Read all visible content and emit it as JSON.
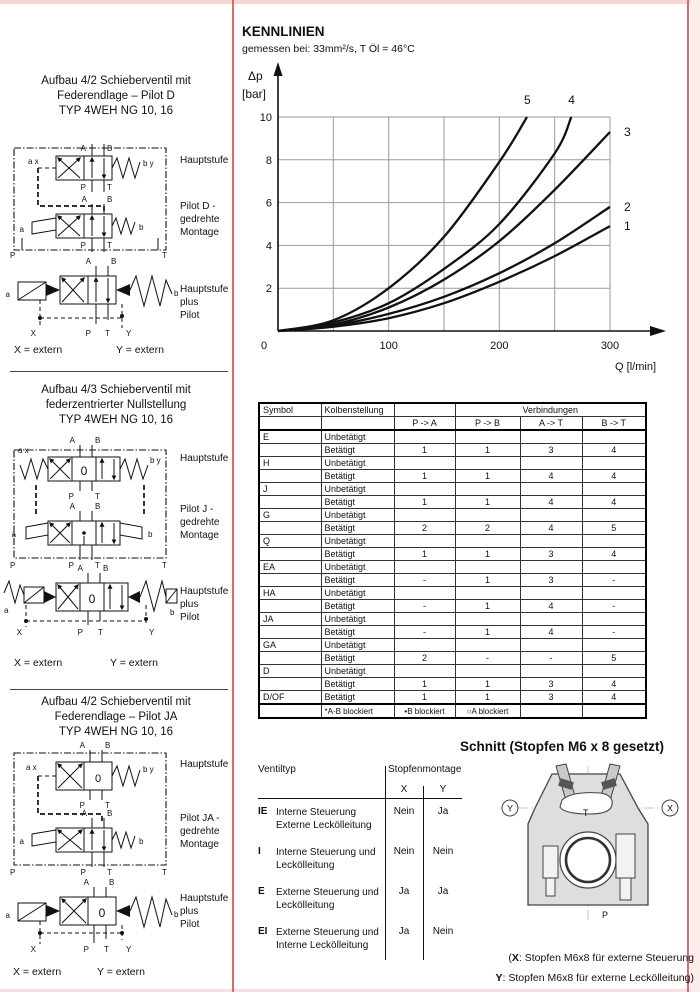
{
  "colors": {
    "rule_red": "#dd6a6a",
    "strip_pink": "#f7d6d6",
    "grid_gray": "#999999"
  },
  "ports": {
    "A": "A",
    "B": "B",
    "P": "P",
    "T": "T",
    "X": "X",
    "Y": "Y",
    "a": "a",
    "b": "b",
    "ax": "a x",
    "by": "b y",
    "zero": "0"
  },
  "sections": [
    {
      "title": [
        "Aufbau 4/2 Schieberventil mit",
        "Federendlage – Pilot D",
        "TYP 4WEH NG 10, 16"
      ],
      "stage1": "Hauptstufe",
      "stage2": [
        "Pilot D -",
        "gedrehte",
        "Montage"
      ],
      "stage3": [
        "Hauptstufe",
        "plus",
        "Pilot"
      ],
      "extern_x": "X = extern",
      "extern_y": "Y = extern"
    },
    {
      "title": [
        "Aufbau 4/3 Schieberventil mit",
        "federzentrierter Nullstellung",
        "TYP 4WEH NG 10, 16"
      ],
      "stage1": "Hauptstufe",
      "stage2": [
        "Pilot J -",
        "gedrehte",
        "Montage"
      ],
      "stage3": [
        "Hauptstufe",
        "plus",
        "Pilot"
      ],
      "extern_x": "X = extern",
      "extern_y": "Y = extern"
    },
    {
      "title": [
        "Aufbau 4/2 Schieberventil mit",
        "Federendlage – Pilot JA",
        "TYP 4WEH NG 10, 16"
      ],
      "stage1": "Hauptstufe",
      "stage2": [
        "Pilot JA -",
        "gedrehte",
        "Montage"
      ],
      "stage3": [
        "Hauptstufe",
        "plus",
        "Pilot"
      ],
      "extern_x": "X = extern",
      "extern_y": "Y = extern"
    }
  ],
  "chart_data": {
    "type": "line",
    "title": "KENNLINIEN",
    "subtitle": "gemessen bei: 33mm²/s, T Öl = 46°C",
    "xlabel": "Q [l/min]",
    "ylabel_line1": "Δp",
    "ylabel_line2": "[bar]",
    "xlim": [
      0,
      300
    ],
    "ylim": [
      0,
      10
    ],
    "x_ticks": [
      0,
      100,
      200,
      300
    ],
    "y_ticks": [
      2,
      4,
      6,
      8,
      10
    ],
    "grid": true,
    "legend_position": "curve-end-labels",
    "series": [
      {
        "name": "1",
        "points": [
          [
            0,
            0
          ],
          [
            50,
            0.2
          ],
          [
            100,
            0.6
          ],
          [
            150,
            1.3
          ],
          [
            200,
            2.3
          ],
          [
            250,
            3.5
          ],
          [
            300,
            4.9
          ]
        ]
      },
      {
        "name": "2",
        "points": [
          [
            0,
            0
          ],
          [
            50,
            0.25
          ],
          [
            100,
            0.8
          ],
          [
            150,
            1.6
          ],
          [
            200,
            2.7
          ],
          [
            250,
            4.1
          ],
          [
            300,
            5.8
          ]
        ]
      },
      {
        "name": "3",
        "points": [
          [
            0,
            0
          ],
          [
            50,
            0.3
          ],
          [
            100,
            1.1
          ],
          [
            150,
            2.4
          ],
          [
            200,
            4.2
          ],
          [
            250,
            6.6
          ],
          [
            300,
            9.3
          ]
        ]
      },
      {
        "name": "4",
        "points": [
          [
            0,
            0
          ],
          [
            50,
            0.4
          ],
          [
            100,
            1.3
          ],
          [
            150,
            2.9
          ],
          [
            200,
            5.0
          ],
          [
            250,
            8.3
          ],
          [
            265,
            10
          ]
        ]
      },
      {
        "name": "5",
        "points": [
          [
            0,
            0
          ],
          [
            50,
            0.5
          ],
          [
            100,
            2.0
          ],
          [
            150,
            4.4
          ],
          [
            200,
            7.9
          ],
          [
            225,
            10
          ]
        ]
      }
    ]
  },
  "connections_table": {
    "header_symbol": "Symbol",
    "header_kolben": "Kolbenstellung",
    "header_verbindungen": "Verbindungen",
    "sub_headers": [
      "P -> A",
      "P -> B",
      "A -> T",
      "B -> T"
    ],
    "state_unbet": "Unbetätigt",
    "state_bet": "Betätigt",
    "groups": [
      {
        "symbol": "E",
        "bet": [
          "1",
          "1",
          "3",
          "4"
        ]
      },
      {
        "symbol": "H",
        "bet": [
          "1",
          "1",
          "4",
          "4"
        ]
      },
      {
        "symbol": "J",
        "bet": [
          "1",
          "1",
          "4",
          "4"
        ]
      },
      {
        "symbol": "G",
        "bet": [
          "2",
          "2",
          "4",
          "5"
        ]
      },
      {
        "symbol": "Q",
        "bet": [
          "1",
          "1",
          "3",
          "4"
        ]
      },
      {
        "symbol": "EA",
        "bet": [
          "-",
          "1",
          "3",
          "-"
        ]
      },
      {
        "symbol": "HA",
        "bet": [
          "-",
          "1",
          "4",
          "-"
        ]
      },
      {
        "symbol": "JA",
        "bet": [
          "-",
          "1",
          "4",
          "-"
        ]
      },
      {
        "symbol": "GA",
        "bet": [
          "2",
          "-",
          "-",
          "5"
        ]
      },
      {
        "symbol": "D",
        "bet": [
          "1",
          "1",
          "3",
          "4"
        ]
      },
      {
        "symbol": "D/OF",
        "single": true,
        "bet": [
          "1",
          "1",
          "3",
          "4"
        ]
      }
    ],
    "footnotes": [
      "*A-B blockiert",
      "•B blockiert",
      "○A blockiert"
    ]
  },
  "schnitt": {
    "heading": "Schnitt (Stopfen M6 x 8 gesetzt)",
    "note_line1": [
      "(",
      "X",
      ": Stopfen M6x8 für externe Steuerung"
    ],
    "note_line2": [
      "",
      "Y",
      ": Stopfen M6x8 für externe Leckölleitung)"
    ]
  },
  "ventil_table": {
    "header_left": "Ventiltyp",
    "header_right": "Stopfenmontage",
    "col_x": "X",
    "col_y": "Y",
    "rows": [
      {
        "code": "IE",
        "desc1": "Interne Steuerung",
        "desc2": "Externe Leckölleitung",
        "x": "Nein",
        "y": "Ja"
      },
      {
        "code": "I",
        "desc1": "Interne Steuerung und",
        "desc2": "Leckölleitung",
        "x": "Nein",
        "y": "Nein"
      },
      {
        "code": "E",
        "desc1": "Externe Steuerung und",
        "desc2": "Leckölleitung",
        "x": "Ja",
        "y": "Ja"
      },
      {
        "code": "EI",
        "desc1": "Externe Steuerung und",
        "desc2": "Interne Leckölleitung",
        "x": "Ja",
        "y": "Nein"
      }
    ]
  }
}
